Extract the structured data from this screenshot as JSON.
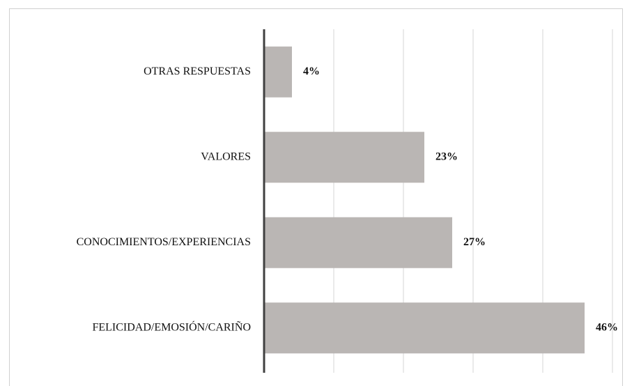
{
  "chart_data": {
    "type": "barh",
    "categories": [
      "OTRAS RESPUESTAS",
      "VALORES",
      "CONOCIMIENTOS/EXPERIENCIAS",
      "FELICIDAD/EMOSIÓN/CARIÑO"
    ],
    "values": [
      4,
      23,
      27,
      46
    ],
    "value_labels": [
      "4%",
      "23%",
      "27%",
      "46%"
    ],
    "color": "#bab6b4",
    "xlim": [
      0,
      50
    ],
    "xticks": [
      0,
      10,
      20,
      30,
      40,
      50
    ],
    "grid": true
  }
}
